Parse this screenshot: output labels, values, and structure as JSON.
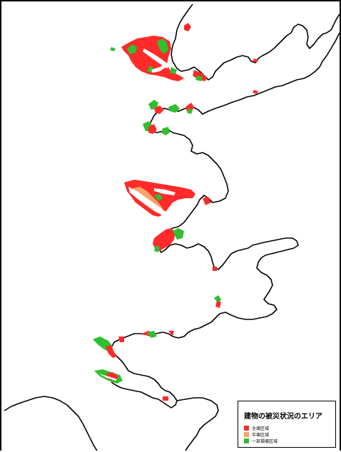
{
  "legend": {
    "title": "建物の被災状況のエリア",
    "items": [
      {
        "label": "全壊区域",
        "color": "#ff2a2a"
      },
      {
        "label": "半壊区域",
        "color": "#f6a36c"
      },
      {
        "label": "一部損壊区域",
        "color": "#2fbf2f"
      }
    ]
  }
}
